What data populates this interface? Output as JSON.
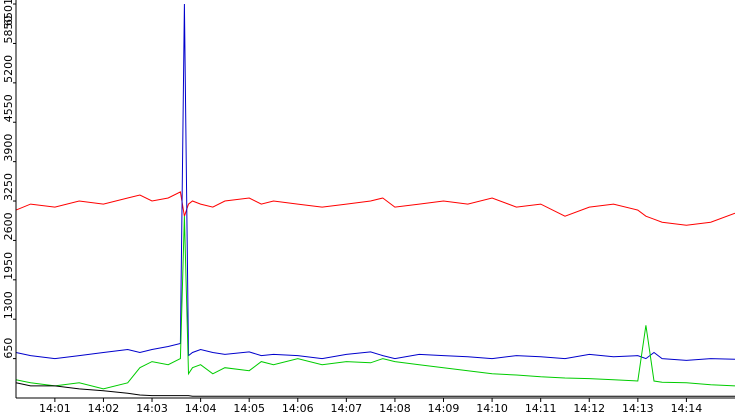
{
  "chart_data": {
    "type": "line",
    "title": "",
    "xlabel": "",
    "ylabel": "",
    "grid": false,
    "legend": "none",
    "ylim": [
      0,
      6501
    ],
    "xlim": [
      "14:00:12",
      "14:15:00"
    ],
    "x_ticks": [
      "14:01",
      "14:02",
      "14:03",
      "14:04",
      "14:05",
      "14:06",
      "14:07",
      "14:08",
      "14:09",
      "14:10",
      "14:11",
      "14:12",
      "14:13",
      "14:14"
    ],
    "y_ticks": [
      "650",
      "1300",
      "1950",
      "2600",
      "3250",
      "3900",
      "4550",
      "5200",
      "5850",
      "6501"
    ],
    "time_points": [
      "14:00:12",
      "14:00:30",
      "14:01:00",
      "14:01:30",
      "14:02:00",
      "14:02:30",
      "14:02:45",
      "14:03:00",
      "14:03:20",
      "14:03:35",
      "14:03:40",
      "14:03:45",
      "14:03:50",
      "14:04:00",
      "14:04:15",
      "14:04:30",
      "14:05:00",
      "14:05:15",
      "14:05:30",
      "14:06:00",
      "14:06:30",
      "14:07:00",
      "14:07:30",
      "14:07:45",
      "14:08:00",
      "14:08:30",
      "14:09:00",
      "14:09:30",
      "14:10:00",
      "14:10:30",
      "14:11:00",
      "14:11:30",
      "14:12:00",
      "14:12:30",
      "14:13:00",
      "14:13:10",
      "14:13:20",
      "14:13:30",
      "14:14:00",
      "14:14:30",
      "14:15:00"
    ],
    "series": [
      {
        "color": "#ff0000",
        "values": [
          3100,
          3200,
          3150,
          3250,
          3200,
          3300,
          3350,
          3250,
          3300,
          3400,
          3000,
          3200,
          3250,
          3200,
          3150,
          3250,
          3300,
          3200,
          3250,
          3200,
          3150,
          3200,
          3250,
          3300,
          3150,
          3200,
          3250,
          3200,
          3300,
          3150,
          3200,
          3000,
          3150,
          3200,
          3100,
          3000,
          2950,
          2900,
          2850,
          2900,
          3050
        ]
      },
      {
        "color": "#0000cc",
        "values": [
          750,
          700,
          650,
          700,
          750,
          800,
          750,
          800,
          850,
          900,
          6501,
          700,
          750,
          800,
          750,
          720,
          760,
          700,
          720,
          700,
          650,
          720,
          760,
          700,
          650,
          720,
          700,
          680,
          650,
          700,
          680,
          650,
          720,
          680,
          700,
          650,
          750,
          650,
          620,
          650,
          640
        ]
      },
      {
        "color": "#00cc00",
        "values": [
          300,
          250,
          200,
          250,
          150,
          250,
          500,
          600,
          550,
          650,
          3000,
          400,
          500,
          550,
          400,
          500,
          450,
          600,
          550,
          650,
          550,
          600,
          580,
          650,
          600,
          550,
          500,
          450,
          400,
          380,
          350,
          330,
          320,
          300,
          280,
          1200,
          280,
          260,
          250,
          220,
          200
        ]
      },
      {
        "color": "#000000",
        "values": [
          250,
          200,
          200,
          150,
          120,
          80,
          50,
          40,
          40,
          40,
          40,
          40,
          30,
          30,
          30,
          30,
          30,
          30,
          30,
          30,
          30,
          30,
          30,
          30,
          30,
          30,
          30,
          30,
          30,
          30,
          30,
          30,
          30,
          30,
          30,
          30,
          30,
          30,
          30,
          30,
          30
        ]
      }
    ]
  }
}
